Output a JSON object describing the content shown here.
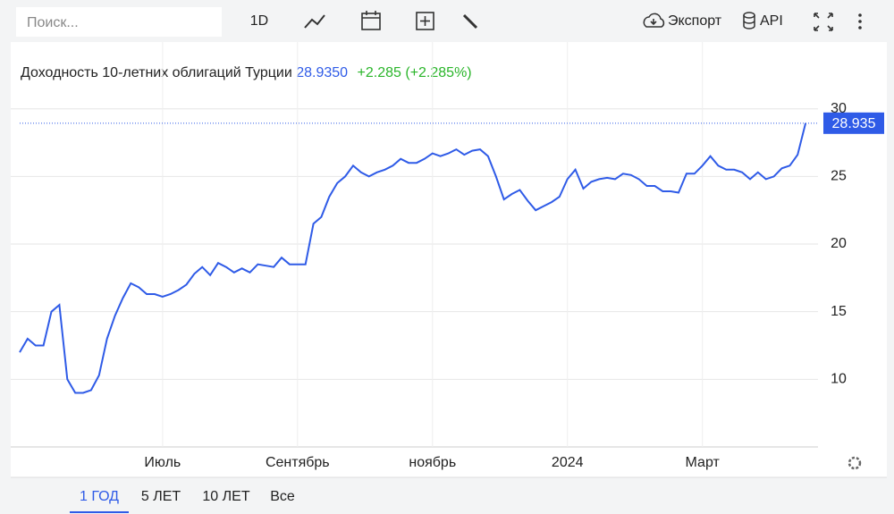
{
  "toolbar": {
    "search_placeholder": "Поиск...",
    "interval": "1D",
    "export": "Экспорт",
    "api": "API"
  },
  "chart_data": {
    "type": "line",
    "title": "Доходность 10-летних облигаций Турции",
    "price": "28.9350",
    "change": "+2.285 (+2.285%)",
    "current_value": 28.935,
    "color": "#2f5be7",
    "categories": [
      null,
      null,
      null,
      null,
      null,
      null,
      null,
      null,
      null,
      null,
      null,
      null,
      null,
      null,
      null,
      null,
      null,
      null,
      "Июль",
      null,
      null,
      null,
      null,
      null,
      null,
      null,
      null,
      null,
      null,
      null,
      null,
      null,
      null,
      null,
      null,
      "Сентябрь",
      null,
      null,
      null,
      null,
      null,
      null,
      null,
      null,
      null,
      null,
      null,
      null,
      null,
      null,
      null,
      null,
      "ноябрь",
      null,
      null,
      null,
      null,
      null,
      null,
      null,
      null,
      null,
      null,
      null,
      null,
      null,
      null,
      null,
      null,
      "2024",
      null,
      null,
      null,
      null,
      null,
      null,
      null,
      null,
      null,
      null,
      null,
      null,
      null,
      null,
      null,
      null,
      "Март",
      null,
      null,
      null,
      null,
      null,
      null,
      null,
      null,
      null,
      null,
      null,
      null,
      null
    ],
    "values": [
      12.0,
      13.0,
      12.5,
      12.5,
      15.0,
      15.5,
      10.0,
      9.0,
      9.0,
      9.2,
      10.3,
      13.0,
      14.7,
      16.0,
      17.1,
      16.8,
      16.3,
      16.3,
      16.1,
      16.3,
      16.6,
      17.0,
      17.8,
      18.3,
      17.7,
      18.6,
      18.3,
      17.9,
      18.2,
      17.9,
      18.5,
      18.4,
      18.3,
      19.0,
      18.5,
      18.5,
      18.5,
      21.5,
      22.0,
      23.5,
      24.5,
      25.0,
      25.8,
      25.3,
      25.0,
      25.3,
      25.5,
      25.8,
      26.3,
      26.0,
      26.0,
      26.3,
      26.7,
      26.5,
      26.7,
      27.0,
      26.6,
      26.9,
      27.0,
      26.5,
      25.0,
      23.3,
      23.7,
      24.0,
      23.2,
      22.5,
      22.8,
      23.1,
      23.5,
      24.8,
      25.5,
      24.1,
      24.6,
      24.8,
      24.9,
      24.8,
      25.2,
      25.1,
      24.8,
      24.3,
      24.3,
      23.9,
      23.9,
      23.8,
      25.2,
      25.2,
      25.8,
      26.5,
      25.8,
      25.5,
      25.5,
      25.3,
      24.8,
      25.3,
      24.8,
      25.0,
      25.6,
      25.8,
      26.6,
      28.935
    ],
    "ylim": [
      5,
      31.5
    ],
    "yticks": [
      10,
      15,
      20,
      25,
      30
    ],
    "grid": true
  },
  "range_tabs": [
    "1 ГОД",
    "5 ЛЕТ",
    "10 ЛЕТ",
    "Все"
  ]
}
